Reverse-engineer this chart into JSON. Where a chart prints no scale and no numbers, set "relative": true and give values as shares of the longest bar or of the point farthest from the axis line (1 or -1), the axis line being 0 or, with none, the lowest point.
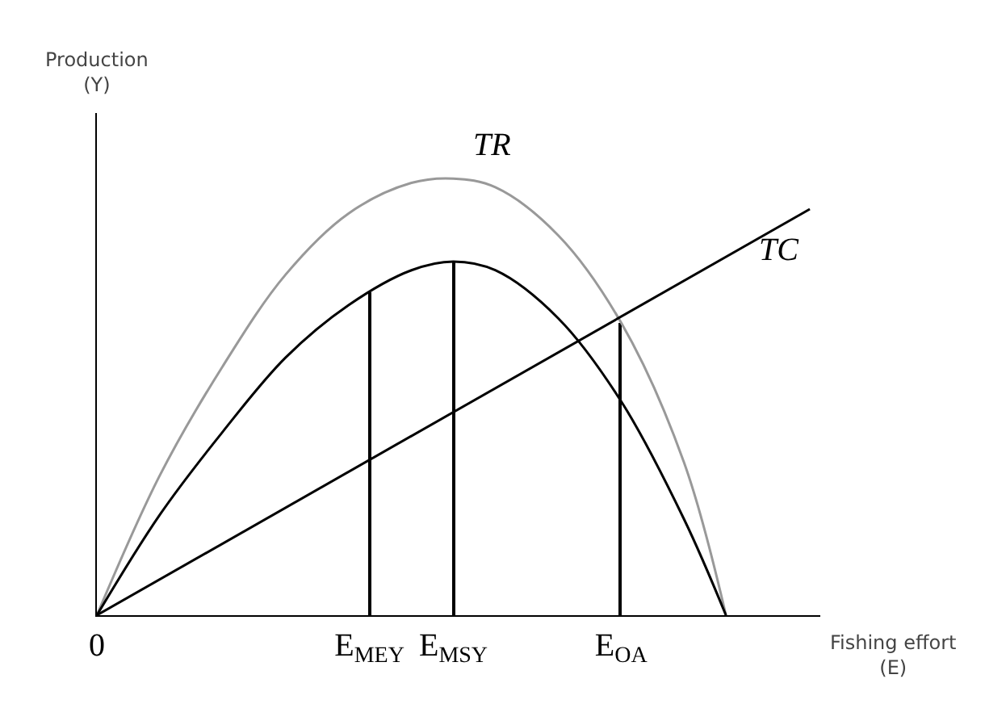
{
  "chart_data": {
    "type": "line",
    "relative": true,
    "xlabel": "Fishing effort\n(E)",
    "ylabel": "Production\n(Y)",
    "legend": false,
    "grid": false,
    "marker": "none",
    "line_style": "solid",
    "categories": [
      "0",
      null,
      null,
      null,
      null,
      null,
      null,
      null,
      null,
      null,
      null,
      null,
      null,
      "E$_{MEY}$",
      null,
      null,
      null,
      "E$_{MSY}$",
      null,
      null,
      null,
      null,
      null,
      null,
      null,
      "E$_{OA}$",
      null,
      null,
      null,
      null,
      null,
      null,
      null,
      null,
      null
    ],
    "series": [
      {
        "name": "TR",
        "color": "#999999",
        "values": [
          0,
          null,
          null,
          0.32,
          null,
          null,
          0.57,
          null,
          null,
          0.78,
          null,
          null,
          0.92,
          null,
          null,
          0.99,
          null,
          1,
          null,
          0.98,
          null,
          null,
          0.87,
          null,
          null,
          0.67,
          null,
          null,
          0.35,
          null,
          0,
          null,
          null,
          null,
          null
        ]
      },
      {
        "color": "#000000",
        "values": [
          0,
          null,
          null,
          0.23,
          null,
          null,
          0.42,
          null,
          null,
          0.59,
          null,
          null,
          0.71,
          null,
          null,
          0.79,
          null,
          0.81,
          null,
          0.79,
          null,
          null,
          0.68,
          null,
          null,
          0.49,
          null,
          null,
          0.22,
          null,
          0,
          null,
          null,
          null,
          null
        ]
      },
      {
        "name": "TC",
        "color": "#000000",
        "values": [
          0,
          null,
          null,
          null,
          null,
          null,
          null,
          null,
          null,
          null,
          null,
          null,
          null,
          null,
          null,
          null,
          null,
          null,
          null,
          null,
          null,
          null,
          null,
          null,
          null,
          null,
          null,
          null,
          null,
          null,
          null,
          null,
          null,
          null,
          0.93
        ]
      },
      {
        "type": "bar",
        "color": "#000000",
        "values": [
          null,
          null,
          null,
          null,
          null,
          null,
          null,
          null,
          null,
          null,
          null,
          null,
          null,
          0.74,
          null,
          null,
          null,
          0.81,
          null,
          null,
          null,
          null,
          null,
          null,
          null,
          0.67,
          null,
          null,
          null,
          null,
          null,
          null,
          null,
          null,
          null
        ]
      }
    ]
  }
}
